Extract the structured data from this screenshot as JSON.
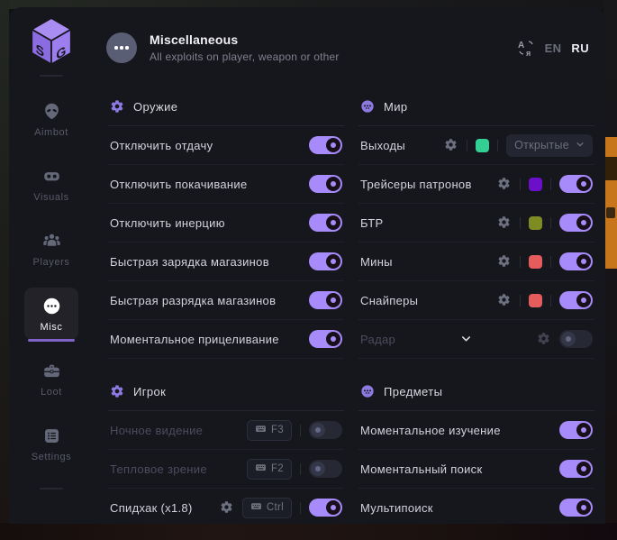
{
  "header": {
    "title": "Miscellaneous",
    "subtitle": "All exploits on player, weapon or other",
    "languages": [
      {
        "label": "EN",
        "active": false
      },
      {
        "label": "RU",
        "active": true
      }
    ]
  },
  "sidebar": {
    "items": [
      {
        "id": "aimbot",
        "label": "Aimbot",
        "icon": "alien-icon",
        "active": false
      },
      {
        "id": "visuals",
        "label": "Visuals",
        "icon": "goggles-icon",
        "active": false
      },
      {
        "id": "players",
        "label": "Players",
        "icon": "players-icon",
        "active": false
      },
      {
        "id": "misc",
        "label": "Misc",
        "icon": "ellipsis-icon",
        "active": true
      },
      {
        "id": "loot",
        "label": "Loot",
        "icon": "briefcase-icon",
        "active": false
      },
      {
        "id": "settings",
        "label": "Settings",
        "icon": "settings-icon",
        "active": false
      }
    ]
  },
  "sections": [
    {
      "id": "weapon",
      "title": "Оружие",
      "icon": "gear-icon",
      "column": "left",
      "rows": [
        {
          "label": "Отключить отдачу",
          "toggle": "on"
        },
        {
          "label": "Отключить покачивание",
          "toggle": "on"
        },
        {
          "label": "Отключить инерцию",
          "toggle": "on"
        },
        {
          "label": "Быстрая зарядка магазинов",
          "toggle": "on"
        },
        {
          "label": "Быстрая разрядка магазинов",
          "toggle": "on"
        },
        {
          "label": "Моментальное прицеливание",
          "toggle": "on"
        }
      ]
    },
    {
      "id": "player",
      "title": "Игрок",
      "icon": "gear-icon",
      "column": "left",
      "rows": [
        {
          "label": "Ночное видение",
          "dimmed": true,
          "key": "F3",
          "toggle": "off"
        },
        {
          "label": "Тепловое зрение",
          "dimmed": true,
          "key": "F2",
          "toggle": "off"
        },
        {
          "label": "Спидхак (x1.8)",
          "gear": true,
          "key": "Ctrl",
          "toggle": "on"
        }
      ]
    },
    {
      "id": "world",
      "title": "Мир",
      "icon": "dots-icon",
      "column": "right",
      "rows": [
        {
          "label": "Выходы",
          "gear": true,
          "swatch": "#33cf94",
          "dropdown": "Открытые"
        },
        {
          "label": "Трейсеры патронов",
          "gear": true,
          "swatch": "#6b0fc9",
          "toggle": "on"
        },
        {
          "label": "БТР",
          "gear": true,
          "swatch": "#7e8c23",
          "toggle": "on"
        },
        {
          "label": "Мины",
          "gear": true,
          "swatch": "#e45c5c",
          "toggle": "on"
        },
        {
          "label": "Снайперы",
          "gear": true,
          "swatch": "#e45c5c",
          "toggle": "on"
        },
        {
          "label": "Радар",
          "dimmed": true,
          "chevron": true,
          "gear": true,
          "gear_dim": true,
          "toggle": "off"
        }
      ]
    },
    {
      "id": "items",
      "title": "Предметы",
      "icon": "dots-icon",
      "column": "right",
      "rows": [
        {
          "label": "Моментальное изучение",
          "toggle": "on"
        },
        {
          "label": "Моментальный поиск",
          "toggle": "on"
        },
        {
          "label": "Мультипоиск",
          "toggle": "on"
        }
      ]
    }
  ],
  "colors": {
    "accent": "#a78bfa",
    "toggle_off": "#262834",
    "swatch_green": "#33cf94",
    "swatch_violet": "#6b0fc9",
    "swatch_olive": "#7e8c23",
    "swatch_red": "#e45c5c",
    "background_orange": "#c8761c"
  }
}
